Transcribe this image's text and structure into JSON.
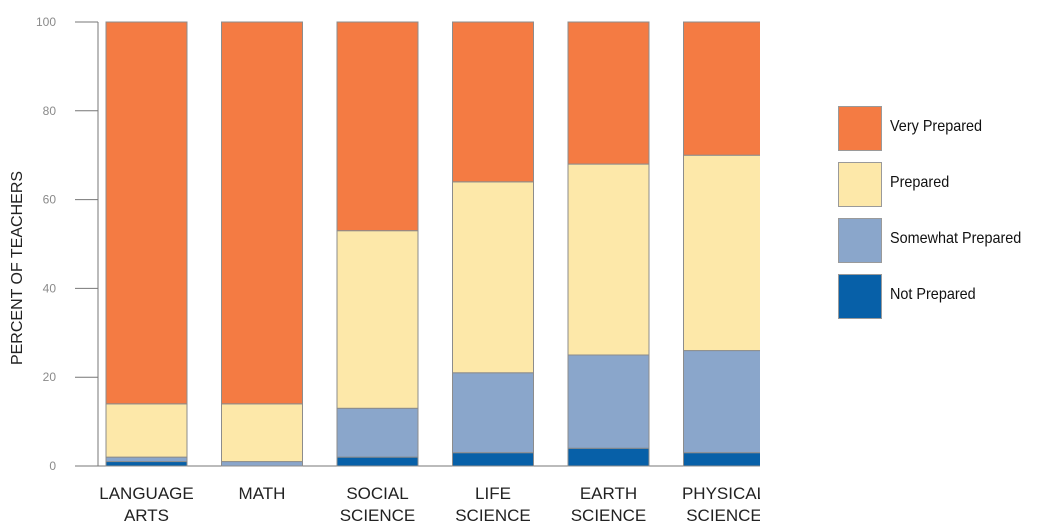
{
  "chart_data": {
    "type": "bar",
    "stacked": true,
    "ylabel": "PERCENT OF TEACHERS",
    "xlabel": "",
    "ylim": [
      0,
      100
    ],
    "yticks": [
      0,
      20,
      40,
      60,
      80,
      100
    ],
    "grid": false,
    "legend_position": "right",
    "categories": [
      [
        "LANGUAGE",
        "ARTS"
      ],
      [
        "MATH"
      ],
      [
        "SOCIAL",
        "SCIENCE"
      ],
      [
        "LIFE",
        "SCIENCE"
      ],
      [
        "EARTH",
        "SCIENCE"
      ],
      [
        "PHYSICAL",
        "SCIENCE"
      ]
    ],
    "series": [
      {
        "name": "Not Prepared",
        "color": "#0760a8",
        "values": [
          1,
          0,
          2,
          3,
          4,
          3
        ]
      },
      {
        "name": "Somewhat Prepared",
        "color": "#8aa6cb",
        "values": [
          1,
          1,
          11,
          18,
          21,
          23
        ]
      },
      {
        "name": "Prepared",
        "color": "#fde8a9",
        "values": [
          12,
          13,
          40,
          43,
          43,
          44
        ]
      },
      {
        "name": "Very Prepared",
        "color": "#f47b43",
        "values": [
          86,
          86,
          47,
          36,
          32,
          30
        ]
      }
    ],
    "legend_order": [
      "Very Prepared",
      "Prepared",
      "Somewhat Prepared",
      "Not Prepared"
    ]
  }
}
